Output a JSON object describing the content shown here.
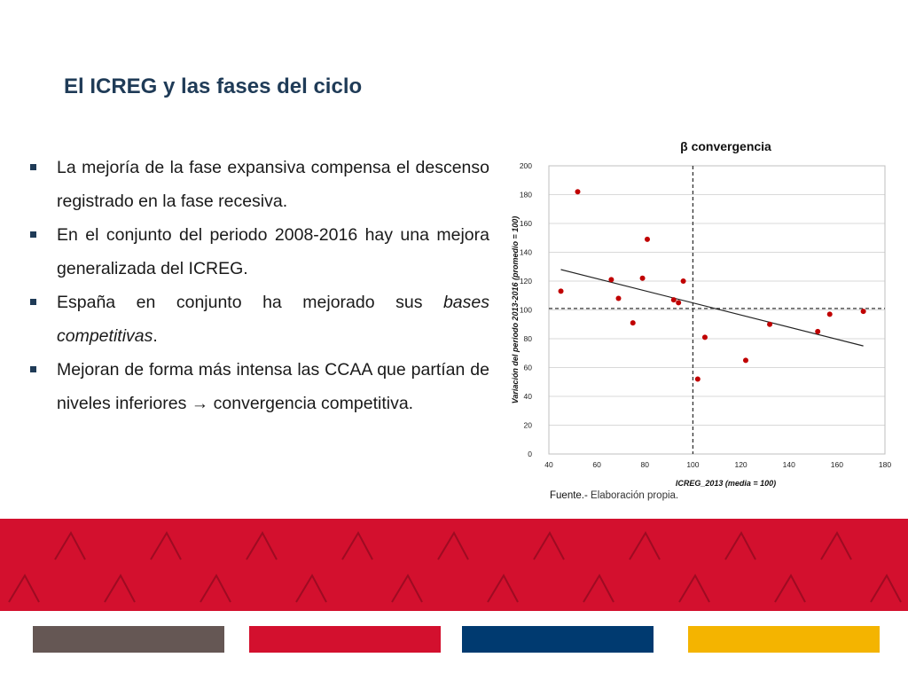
{
  "slide": {
    "title": "El ICREG y las fases del ciclo"
  },
  "bullets": [
    {
      "segments": [
        {
          "text": "La mejoría de la fase expansiva compensa el descenso registrado en la fase recesiva.",
          "italic": false
        }
      ]
    },
    {
      "segments": [
        {
          "text": "En el conjunto del periodo 2008-2016 hay una mejora generalizada del ICREG.",
          "italic": false
        }
      ]
    },
    {
      "segments": [
        {
          "text": "España en conjunto ha mejorado sus ",
          "italic": false
        },
        {
          "text": "bases competitivas",
          "italic": true
        },
        {
          "text": ".",
          "italic": false
        }
      ]
    },
    {
      "segments": [
        {
          "text": "Mejoran de forma más intensa las CCAA que partían de niveles inferiores → convergencia competitiva.",
          "italic": false
        }
      ]
    }
  ],
  "source": {
    "label": "Fuente.-",
    "text": " Elaboración propia."
  },
  "chart_data": {
    "type": "scatter",
    "title": "β convergencia",
    "xlabel": "ICREG_2013 (media = 100)",
    "ylabel": "Variación del periodo 2013-2016 (promedio = 100)",
    "xlim": [
      40,
      180
    ],
    "ylim": [
      0,
      200
    ],
    "x_ticks": [
      40,
      60,
      80,
      100,
      120,
      140,
      160,
      180
    ],
    "y_ticks": [
      0,
      20,
      40,
      60,
      80,
      100,
      120,
      140,
      160,
      180,
      200
    ],
    "grid": "horizontal",
    "reference_lines": {
      "x": 100,
      "y": 101
    },
    "trendline": {
      "x": [
        45,
        171
      ],
      "y": [
        128,
        75
      ]
    },
    "point_color": "#c00000",
    "points": [
      {
        "x": 45,
        "y": 113
      },
      {
        "x": 52,
        "y": 182
      },
      {
        "x": 66,
        "y": 121
      },
      {
        "x": 69,
        "y": 108
      },
      {
        "x": 75,
        "y": 91
      },
      {
        "x": 79,
        "y": 122
      },
      {
        "x": 81,
        "y": 149
      },
      {
        "x": 92,
        "y": 107
      },
      {
        "x": 94,
        "y": 105
      },
      {
        "x": 96,
        "y": 120
      },
      {
        "x": 102,
        "y": 52
      },
      {
        "x": 105,
        "y": 81
      },
      {
        "x": 122,
        "y": 65
      },
      {
        "x": 132,
        "y": 90
      },
      {
        "x": 152,
        "y": 85
      },
      {
        "x": 157,
        "y": 97
      },
      {
        "x": 171,
        "y": 99
      }
    ]
  },
  "footer": {
    "colors": [
      "#d3102e",
      "#655754",
      "#d3102e",
      "#003a70",
      "#f4b400"
    ]
  }
}
